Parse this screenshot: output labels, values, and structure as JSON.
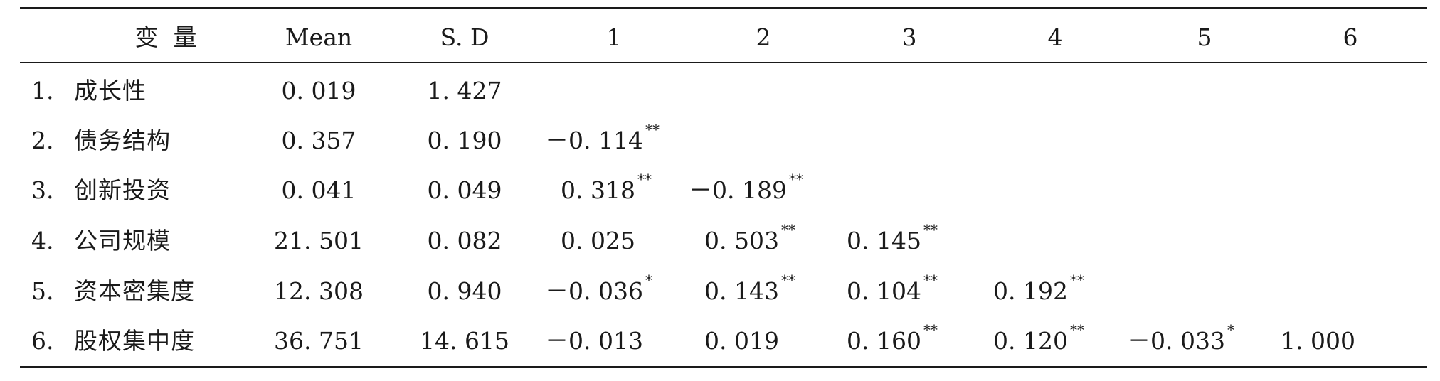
{
  "table": {
    "headers": [
      "变  量",
      "Mean",
      "S. D",
      "1",
      "2",
      "3",
      "4",
      "5",
      "6"
    ],
    "rows": [
      {
        "index": "1.",
        "name": "成长性",
        "mean": "0. 019",
        "sd": "1. 427",
        "corr": []
      },
      {
        "index": "2.",
        "name": "债务结构",
        "mean": "0. 357",
        "sd": "0. 190",
        "corr": [
          {
            "value": "－0. 114",
            "stars": "**"
          }
        ]
      },
      {
        "index": "3.",
        "name": "创新投资",
        "mean": "0. 041",
        "sd": "0. 049",
        "corr": [
          {
            "value": "0. 318",
            "stars": "**"
          },
          {
            "value": "－0. 189",
            "stars": "**"
          }
        ]
      },
      {
        "index": "4.",
        "name": "公司规模",
        "mean": "21. 501",
        "sd": "0. 082",
        "corr": [
          {
            "value": "0. 025",
            "stars": ""
          },
          {
            "value": "0. 503",
            "stars": "**"
          },
          {
            "value": "0. 145",
            "stars": "**"
          }
        ]
      },
      {
        "index": "5.",
        "name": "资本密集度",
        "mean": "12. 308",
        "sd": "0. 940",
        "corr": [
          {
            "value": "－0. 036",
            "stars": "*"
          },
          {
            "value": "0. 143",
            "stars": "**"
          },
          {
            "value": "0. 104",
            "stars": "**"
          },
          {
            "value": "0. 192",
            "stars": "**"
          }
        ]
      },
      {
        "index": "6.",
        "name": "股权集中度",
        "mean": "36. 751",
        "sd": "14. 615",
        "corr": [
          {
            "value": "－0. 013",
            "stars": ""
          },
          {
            "value": "0. 019",
            "stars": ""
          },
          {
            "value": "0. 160",
            "stars": "**"
          },
          {
            "value": "0. 120",
            "stars": "**"
          },
          {
            "value": "－0. 033",
            "stars": "*"
          },
          {
            "value": "1. 000",
            "stars": ""
          }
        ]
      }
    ]
  }
}
